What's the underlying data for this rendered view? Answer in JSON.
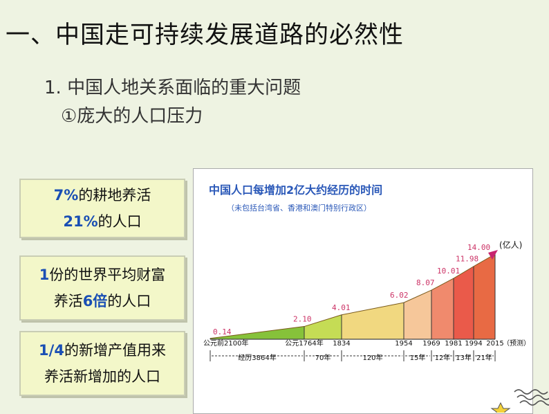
{
  "slide": {
    "title": "一、中国走可持续发展道路的必然性",
    "subtitle1": "1. 中国人地关系面临的重大问题",
    "subtitle2": "①庞大的人口压力"
  },
  "boxes": [
    {
      "line1_hl": "7%",
      "line1_rest": "的耕地养活",
      "line2_hl": "21%",
      "line2_rest": "的人口"
    },
    {
      "line1_hl": "1",
      "line1_rest": "份的世界平均财富",
      "line2_pre": "养活",
      "line2_hl": "6倍",
      "line2_rest": "的人口"
    },
    {
      "line1_hl": "1/4",
      "line1_rest": "的新增产值用来",
      "line2_rest": "养活新增加的人口"
    }
  ],
  "colors": {
    "highlight": "#1a4fb4",
    "chart_title": "#2a58b8",
    "arrow": "#c8246e",
    "value_label": "#cc3366"
  },
  "chart_data": {
    "type": "area",
    "title": "中国人口每增加2亿大约经历的时间",
    "subtitle": "（未包括台湾省、香港和澳门特别行政区）",
    "unit_label": "(亿人)",
    "x_labels": [
      "公元前2100年",
      "公元1764年",
      "1834",
      "1954",
      "1969",
      "1981",
      "1994",
      "2015",
      "（预测）"
    ],
    "values": [
      0.14,
      2.1,
      4.01,
      6.02,
      8.07,
      10.01,
      11.98,
      14.0
    ],
    "value_labels": [
      "0.14",
      "2.10",
      "4.01",
      "6.02",
      "8.07",
      "10.01",
      "11.98",
      "14.00"
    ],
    "intervals": [
      "经历3864年",
      "70年",
      "120年",
      "15年",
      "12年",
      "13年",
      "21年"
    ],
    "segment_colors": [
      "#86c23a",
      "#c5dc55",
      "#f1d880",
      "#f6c79a",
      "#f08a6d",
      "#ea5a4a",
      "#e86a44",
      "#ee8a3c"
    ]
  }
}
